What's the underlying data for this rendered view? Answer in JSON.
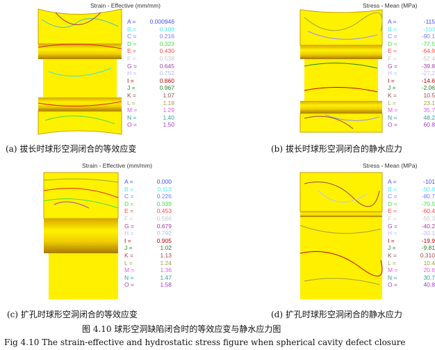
{
  "panels": [
    {
      "title": "Strain - Effective (mm/mm)",
      "caption": "(a) 拔长时球形空洞闭合的等效应变",
      "legend": [
        [
          "A =",
          "0.000946"
        ],
        [
          "B =",
          "0.108"
        ],
        [
          "C =",
          "0.216"
        ],
        [
          "D =",
          "0.323"
        ],
        [
          "E =",
          "0.430"
        ],
        [
          "F =",
          "0.538"
        ],
        [
          "G =",
          "0.645"
        ],
        [
          "H =",
          "0.752"
        ],
        [
          "I =",
          "0.860"
        ],
        [
          "J =",
          "0.967"
        ],
        [
          "K =",
          "1.07"
        ],
        [
          "L =",
          "1.18"
        ],
        [
          "M =",
          "1.29"
        ],
        [
          "N =",
          "1.40"
        ],
        [
          "O =",
          "1.50"
        ]
      ]
    },
    {
      "title": "Stress - Mean (MPa)",
      "caption": "(b) 拔长时球形空洞闭合的静水应力",
      "legend": [
        [
          "A =",
          "-115"
        ],
        [
          "B =",
          "-103"
        ],
        [
          "C =",
          "-90.1"
        ],
        [
          "D =",
          "-77.5"
        ],
        [
          "E =",
          "-64.9"
        ],
        [
          "F =",
          "-52.4"
        ],
        [
          "G =",
          "-39.8"
        ],
        [
          "H =",
          "-27.2"
        ],
        [
          "I =",
          "-14.6"
        ],
        [
          "J =",
          "-2.06"
        ],
        [
          "K =",
          "10.5"
        ],
        [
          "L =",
          "23.1"
        ],
        [
          "M =",
          "35.7"
        ],
        [
          "N =",
          "48.2"
        ],
        [
          "O =",
          "60.8"
        ]
      ]
    },
    {
      "title": "Strain - Effective (mm/mm)",
      "caption": "(c) 扩孔时球形空洞闭合的等效应变",
      "legend": [
        [
          "A =",
          "0.000"
        ],
        [
          "B =",
          "0.113"
        ],
        [
          "C =",
          "0.226"
        ],
        [
          "D =",
          "0.339"
        ],
        [
          "E =",
          "0.453"
        ],
        [
          "F =",
          "0.566"
        ],
        [
          "G =",
          "0.679"
        ],
        [
          "H =",
          "0.792"
        ],
        [
          "I =",
          "0.905"
        ],
        [
          "J =",
          "1.02"
        ],
        [
          "K =",
          "1.13"
        ],
        [
          "L =",
          "1.24"
        ],
        [
          "M =",
          "1.36"
        ],
        [
          "N =",
          "1.47"
        ],
        [
          "O =",
          "1.58"
        ]
      ]
    },
    {
      "title": "Stress - Mean (MPa)",
      "caption": "(d) 扩孔时球形空洞闭合的静水应力",
      "legend": [
        [
          "A =",
          "-101"
        ],
        [
          "B =",
          "-90.8"
        ],
        [
          "C =",
          "-80.7"
        ],
        [
          "D =",
          "-70.5"
        ],
        [
          "E =",
          "-60.4"
        ],
        [
          "F =",
          "-50.3"
        ],
        [
          "G =",
          "-40.2"
        ],
        [
          "H =",
          "-30.1"
        ],
        [
          "I =",
          "-19.9"
        ],
        [
          "J =",
          "-9.81"
        ],
        [
          "K =",
          "0.310"
        ],
        [
          "L =",
          "10.4"
        ],
        [
          "M =",
          "20.6"
        ],
        [
          "N =",
          "30.7"
        ],
        [
          "O =",
          "40.8"
        ]
      ]
    }
  ],
  "legend_colors": [
    "#4a4aff",
    "#40f0f0",
    "#7878ff",
    "#40e040",
    "#ff4848",
    "#c8c8c8",
    "#a040a0",
    "#b8b8ff",
    "#c00000",
    "#208020",
    "#a04848",
    "#a0a040",
    "#e060e0",
    "#30a0a0",
    "#a040c0"
  ],
  "figure_caption_cn": "图 4.10 球形空洞缺陷闭合时的等效应变与静水应力图",
  "figure_caption_en": "Fig 4.10 The strain-effective and hydrostatic stress figure when spherical cavity defect closure"
}
